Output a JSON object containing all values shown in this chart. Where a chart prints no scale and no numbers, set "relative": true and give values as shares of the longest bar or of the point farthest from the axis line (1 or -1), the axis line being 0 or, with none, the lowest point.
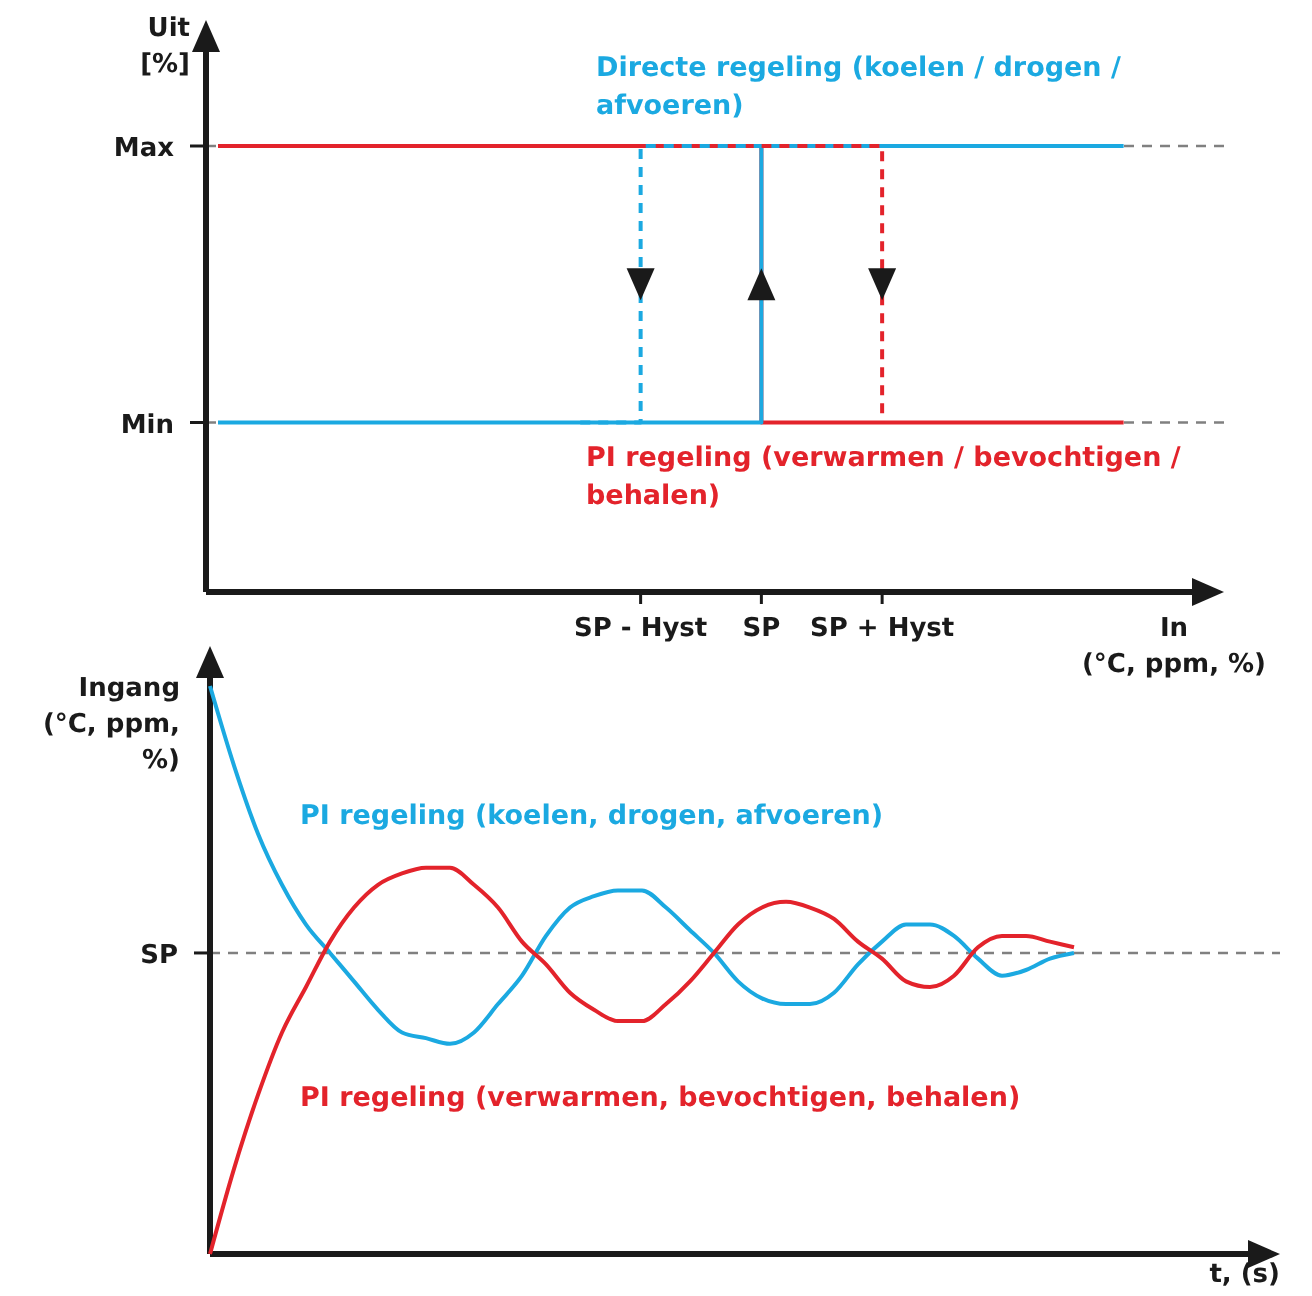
{
  "chart_data": [
    {
      "type": "step",
      "relative": true,
      "ylabel": "Uit [%]",
      "xlabel": "In (°C, ppm, %)",
      "categories": [
        null,
        null,
        null,
        null,
        null,
        null,
        null,
        "SP - Hyst",
        null,
        "SP",
        null,
        "SP + Hyst",
        null,
        null,
        null,
        null,
        null
      ],
      "ref_lines": [
        {
          "axis": "y",
          "value": 0.38,
          "label": "Min",
          "color": "#808080",
          "line_style": "dashed"
        },
        {
          "axis": "y",
          "value": 1,
          "label": "Max",
          "color": "#808080",
          "line_style": "dashed"
        }
      ],
      "series": [
        {
          "name": "PI regeling (verwarmen / bevochtigen / behalen)",
          "color": "#e3232b",
          "values": [
            1,
            1,
            1,
            1,
            1,
            1,
            1,
            1,
            1,
            0.38,
            0.38,
            0.38,
            0.38,
            0.38,
            0.38,
            0.38,
            null
          ],
          "line_style": "solid"
        },
        {
          "name": "Directe regeling (koelen / drogen / afvoeren)",
          "color": "#1ba9e1",
          "values": [
            0.38,
            0.38,
            0.38,
            0.38,
            0.38,
            0.38,
            0.38,
            0.38,
            0.38,
            1,
            1,
            1,
            1,
            1,
            1,
            1,
            null
          ],
          "line_style": "solid"
        },
        {
          "color": "#e3232b",
          "values": [
            null,
            null,
            null,
            null,
            null,
            null,
            null,
            null,
            null,
            1,
            1,
            0.38,
            null,
            null,
            null,
            null,
            null
          ],
          "line_style": "dashed"
        },
        {
          "color": "#1ba9e1",
          "values": [
            null,
            null,
            null,
            null,
            null,
            null,
            0.38,
            1,
            1,
            1,
            null,
            null,
            null,
            null,
            null,
            null,
            null
          ],
          "line_style": "dashed"
        }
      ]
    },
    {
      "type": "line",
      "relative": true,
      "ylabel": "Ingang (°C, ppm, %)",
      "xlabel": "t, (s)",
      "categories": [
        null,
        null,
        null,
        null,
        null,
        null,
        null,
        null,
        null,
        null,
        null,
        null,
        null,
        null,
        null,
        null,
        null,
        null,
        null,
        null,
        null,
        null,
        null,
        null,
        null,
        null,
        null,
        null,
        null,
        null,
        null,
        null,
        null,
        null,
        null,
        null,
        null,
        null,
        null,
        null,
        null,
        null,
        null,
        null,
        null
      ],
      "ref_lines": [
        {
          "axis": "y",
          "value": 0.53,
          "label": "SP",
          "color": "#808080",
          "line_style": "dashed"
        }
      ],
      "series": [
        {
          "name": "PI regeling (koelen, drogen, afvoeren)",
          "color": "#1ba9e1",
          "values": [
            1.0,
            0.86,
            0.74,
            0.65,
            0.58,
            0.53,
            0.48,
            0.43,
            0.39,
            0.38,
            0.37,
            0.39,
            0.44,
            0.49,
            0.56,
            0.61,
            0.63,
            0.64,
            0.64,
            0.61,
            0.57,
            0.53,
            0.48,
            0.45,
            0.44,
            0.44,
            0.46,
            0.51,
            0.55,
            0.58,
            0.58,
            0.56,
            0.52,
            0.49,
            0.5,
            0.52,
            0.53,
            null,
            null,
            null,
            null,
            null,
            null,
            null,
            null
          ]
        },
        {
          "name": "PI regeling (verwarmen, bevochtigen, behalen)",
          "color": "#e3232b",
          "values": [
            0,
            0.15,
            0.28,
            0.39,
            0.47,
            0.55,
            0.61,
            0.65,
            0.67,
            0.68,
            0.68,
            0.65,
            0.61,
            0.55,
            0.51,
            0.46,
            0.43,
            0.41,
            0.41,
            0.44,
            0.48,
            0.53,
            0.58,
            0.61,
            0.62,
            0.61,
            0.59,
            0.55,
            0.52,
            0.48,
            0.47,
            0.49,
            0.54,
            0.56,
            0.56,
            0.55,
            0.54,
            null,
            null,
            null,
            null,
            null,
            null,
            null,
            null
          ]
        }
      ]
    }
  ]
}
